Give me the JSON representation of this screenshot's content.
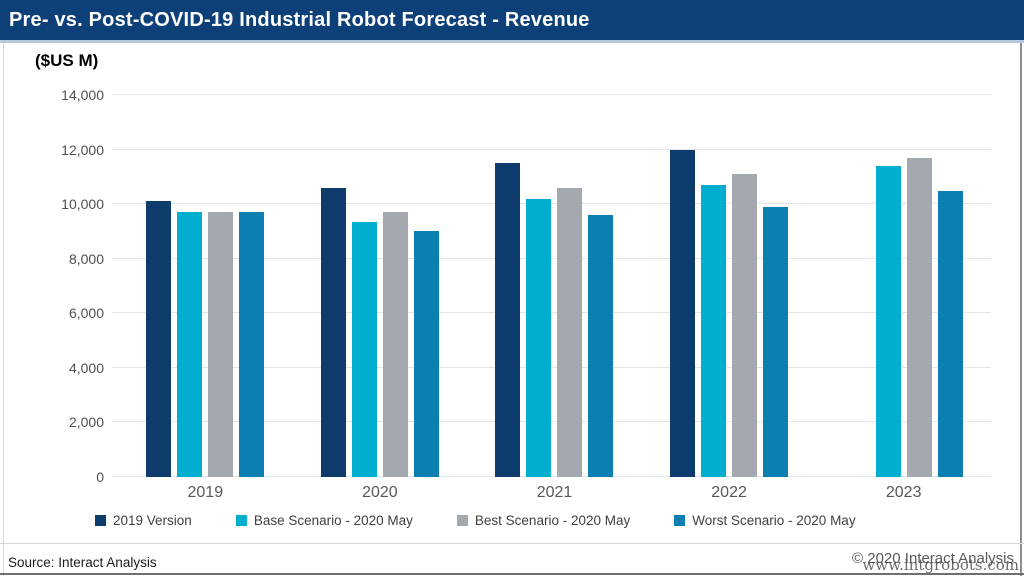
{
  "header": {
    "title": "Pre- vs. Post-COVID-19 Industrial Robot Forecast - Revenue",
    "bar_color": "#0d4078",
    "accent_color": "#b6c8de"
  },
  "chart_data": {
    "type": "bar",
    "title": "Pre- vs. Post-COVID-19 Industrial Robot Forecast - Revenue",
    "units_label": "($US M)",
    "xlabel": "",
    "ylabel": "($US M)",
    "categories": [
      "2019",
      "2020",
      "2021",
      "2022",
      "2023"
    ],
    "series": [
      {
        "name": "2019 Version",
        "color": "#0e3d6d",
        "values": [
          10100,
          10600,
          11500,
          12000,
          null
        ]
      },
      {
        "name": "Base Scenario - 2020 May",
        "color": "#00aed0",
        "values": [
          9700,
          9350,
          10200,
          10700,
          11400
        ]
      },
      {
        "name": "Best Scenario - 2020 May",
        "color": "#a3a9ae",
        "values": [
          9700,
          9700,
          10600,
          11100,
          11700
        ]
      },
      {
        "name": "Worst Scenario - 2020 May",
        "color": "#0b7fb1",
        "values": [
          9700,
          9000,
          9600,
          9900,
          10500
        ]
      }
    ],
    "ylim": [
      0,
      14000
    ],
    "ytick_step": 2000,
    "ytick_labels": [
      "0",
      "2,000",
      "4,000",
      "6,000",
      "8,000",
      "10,000",
      "12,000",
      "14,000"
    ],
    "grid": "horizontal",
    "legend_position": "bottom"
  },
  "footer": {
    "source": "Source: Interact Analysis",
    "copyright": "© 2020 Interact Analysis",
    "watermark": "www.intgrobots.com"
  }
}
